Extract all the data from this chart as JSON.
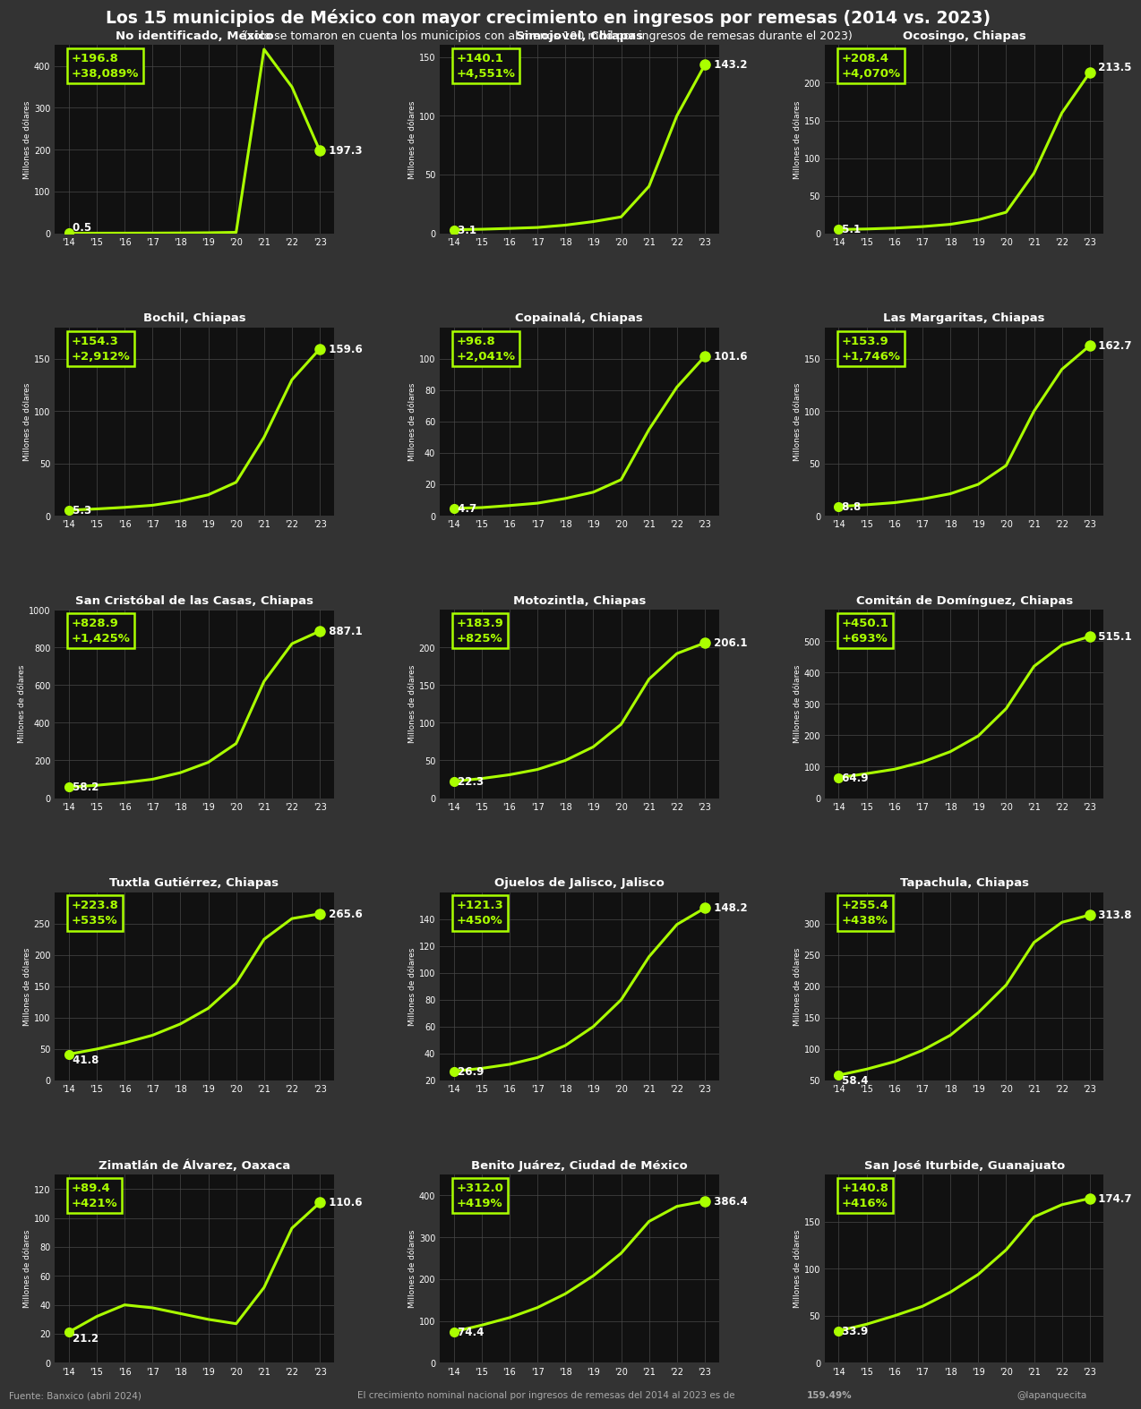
{
  "title": "Los 15 municipios de México con mayor crecimiento en ingresos por remesas (2014 vs. 2023)",
  "subtitle": "(solo se tomaron en cuenta los municipios con al menos 100 mdd por ingresos de remesas durante el 2023)",
  "footer_source": "Fuente: Banxico (abril 2024)",
  "footer_center": "El crecimiento nominal nacional por ingresos de remesas del 2014 al 2023 es de ",
  "footer_bold": "159.49%",
  "footer_handle": "@lapanquecita",
  "bg_color": "#333333",
  "plot_bg_color": "#111111",
  "line_color": "#aaff00",
  "dot_color": "#aaff00",
  "text_color": "#ffffff",
  "annotation_green": "#aaff00",
  "years": [
    "'14",
    "'15",
    "'16",
    "'17",
    "'18",
    "'19",
    "'20",
    "'21",
    "'22",
    "'23"
  ],
  "charts": [
    {
      "title": "No identificado, México",
      "start_val": "0.5",
      "end_val": "197.3",
      "change_abs": "+196.8",
      "change_pct": "+38,089%",
      "ylim": [
        0,
        450
      ],
      "yticks": [
        0,
        100,
        200,
        300,
        400
      ],
      "data": [
        0.5,
        0.5,
        0.6,
        0.7,
        1.0,
        1.5,
        2.5,
        440.0,
        350.0,
        197.3
      ],
      "start_ha": "right",
      "end_ha": "left",
      "start_va": "bottom",
      "end_va": "center"
    },
    {
      "title": "Simojovel, Chiapas",
      "start_val": "3.1",
      "end_val": "143.2",
      "change_abs": "+140.1",
      "change_pct": "+4,551%",
      "ylim": [
        0,
        160
      ],
      "yticks": [
        0,
        50,
        100,
        150
      ],
      "data": [
        3.1,
        3.5,
        4.2,
        5.0,
        7.0,
        10.0,
        14.0,
        40.0,
        100.0,
        143.2
      ],
      "start_ha": "right",
      "end_ha": "left",
      "start_va": "center",
      "end_va": "center"
    },
    {
      "title": "Ocosingo, Chiapas",
      "start_val": "5.1",
      "end_val": "213.5",
      "change_abs": "+208.4",
      "change_pct": "+4,070%",
      "ylim": [
        0,
        250
      ],
      "yticks": [
        0,
        50,
        100,
        150,
        200
      ],
      "data": [
        5.1,
        5.8,
        7.0,
        9.0,
        12.0,
        18.0,
        28.0,
        80.0,
        160.0,
        213.5
      ],
      "start_ha": "right",
      "end_ha": "left",
      "start_va": "center",
      "end_va": "bottom"
    },
    {
      "title": "Bochil, Chiapas",
      "start_val": "5.3",
      "end_val": "159.6",
      "change_abs": "+154.3",
      "change_pct": "+2,912%",
      "ylim": [
        0,
        180
      ],
      "yticks": [
        0,
        50,
        100,
        150
      ],
      "data": [
        5.3,
        6.5,
        8.0,
        10.0,
        14.0,
        20.0,
        32.0,
        75.0,
        130.0,
        159.6
      ],
      "start_ha": "right",
      "end_ha": "left",
      "start_va": "center",
      "end_va": "center"
    },
    {
      "title": "Copainalá, Chiapas",
      "start_val": "4.7",
      "end_val": "101.6",
      "change_abs": "+96.8",
      "change_pct": "+2,041%",
      "ylim": [
        0,
        120
      ],
      "yticks": [
        0,
        20,
        40,
        60,
        80,
        100
      ],
      "data": [
        4.7,
        5.2,
        6.5,
        8.0,
        11.0,
        15.0,
        23.0,
        55.0,
        82.0,
        101.6
      ],
      "start_ha": "right",
      "end_ha": "left",
      "start_va": "center",
      "end_va": "center"
    },
    {
      "title": "Las Margaritas, Chiapas",
      "start_val": "8.8",
      "end_val": "162.7",
      "change_abs": "+153.9",
      "change_pct": "+1,746%",
      "ylim": [
        0,
        180
      ],
      "yticks": [
        0,
        50,
        100,
        150
      ],
      "data": [
        8.8,
        10.5,
        12.5,
        16.0,
        21.0,
        30.0,
        48.0,
        100.0,
        140.0,
        162.7
      ],
      "start_ha": "right",
      "end_ha": "left",
      "start_va": "center",
      "end_va": "center"
    },
    {
      "title": "San Cristóbal de las Casas, Chiapas",
      "start_val": "58.2",
      "end_val": "887.1",
      "change_abs": "+828.9",
      "change_pct": "+1,425%",
      "ylim": [
        0,
        1000
      ],
      "yticks": [
        0,
        200,
        400,
        600,
        800,
        1000
      ],
      "data": [
        58.2,
        68.0,
        82.0,
        100.0,
        135.0,
        190.0,
        290.0,
        620.0,
        820.0,
        887.1
      ],
      "start_ha": "right",
      "end_ha": "left",
      "start_va": "center",
      "end_va": "center"
    },
    {
      "title": "Motozintla, Chiapas",
      "start_val": "22.3",
      "end_val": "206.1",
      "change_abs": "+183.9",
      "change_pct": "+825%",
      "ylim": [
        0,
        250
      ],
      "yticks": [
        0,
        50,
        100,
        150,
        200
      ],
      "data": [
        22.3,
        26.0,
        31.0,
        38.0,
        50.0,
        68.0,
        98.0,
        158.0,
        192.0,
        206.1
      ],
      "start_ha": "right",
      "end_ha": "left",
      "start_va": "center",
      "end_va": "center"
    },
    {
      "title": "Comitán de Domínguez, Chiapas",
      "start_val": "64.9",
      "end_val": "515.1",
      "change_abs": "+450.1",
      "change_pct": "+693%",
      "ylim": [
        0,
        600
      ],
      "yticks": [
        0,
        100,
        200,
        300,
        400,
        500
      ],
      "data": [
        64.9,
        78.0,
        92.0,
        115.0,
        148.0,
        198.0,
        285.0,
        420.0,
        488.0,
        515.1
      ],
      "start_ha": "right",
      "end_ha": "left",
      "start_va": "center",
      "end_va": "center"
    },
    {
      "title": "Tuxtla Gutiérrez, Chiapas",
      "start_val": "41.8",
      "end_val": "265.6",
      "change_abs": "+223.8",
      "change_pct": "+535%",
      "ylim": [
        0,
        300
      ],
      "yticks": [
        0,
        50,
        100,
        150,
        200,
        250
      ],
      "data": [
        41.8,
        50.0,
        60.0,
        72.0,
        90.0,
        115.0,
        155.0,
        225.0,
        258.0,
        265.6
      ],
      "start_ha": "right",
      "end_ha": "left",
      "start_va": "top",
      "end_va": "center"
    },
    {
      "title": "Ojuelos de Jalisco, Jalisco",
      "start_val": "26.9",
      "end_val": "148.2",
      "change_abs": "+121.3",
      "change_pct": "+450%",
      "ylim": [
        20,
        160
      ],
      "yticks": [
        20,
        40,
        60,
        80,
        100,
        120,
        140
      ],
      "data": [
        26.9,
        29.0,
        32.0,
        37.0,
        46.0,
        60.0,
        80.0,
        112.0,
        136.0,
        148.2
      ],
      "start_ha": "right",
      "end_ha": "left",
      "start_va": "center",
      "end_va": "center"
    },
    {
      "title": "Tapachula, Chiapas",
      "start_val": "58.4",
      "end_val": "313.8",
      "change_abs": "+255.4",
      "change_pct": "+438%",
      "ylim": [
        50,
        350
      ],
      "yticks": [
        50,
        100,
        150,
        200,
        250,
        300
      ],
      "data": [
        58.4,
        68.0,
        80.0,
        98.0,
        122.0,
        158.0,
        202.0,
        270.0,
        302.0,
        313.8
      ],
      "start_ha": "right",
      "end_ha": "left",
      "start_va": "top",
      "end_va": "center"
    },
    {
      "title": "Zimatlán de Álvarez, Oaxaca",
      "start_val": "21.2",
      "end_val": "110.6",
      "change_abs": "+89.4",
      "change_pct": "+421%",
      "ylim": [
        0,
        130
      ],
      "yticks": [
        0,
        20,
        40,
        60,
        80,
        100,
        120
      ],
      "data": [
        21.2,
        32.0,
        40.0,
        38.0,
        34.0,
        30.0,
        27.0,
        52.0,
        93.0,
        110.6
      ],
      "start_ha": "right",
      "end_ha": "left",
      "start_va": "top",
      "end_va": "center"
    },
    {
      "title": "Benito Juárez, Ciudad de México",
      "start_val": "74.4",
      "end_val": "386.4",
      "change_abs": "+312.0",
      "change_pct": "+419%",
      "ylim": [
        0,
        450
      ],
      "yticks": [
        0,
        100,
        200,
        300,
        400
      ],
      "data": [
        74.4,
        90.0,
        108.0,
        132.0,
        165.0,
        208.0,
        262.0,
        338.0,
        374.0,
        386.4
      ],
      "start_ha": "right",
      "end_ha": "left",
      "start_va": "center",
      "end_va": "center"
    },
    {
      "title": "San José Iturbide, Guanajuato",
      "start_val": "33.9",
      "end_val": "174.7",
      "change_abs": "+140.8",
      "change_pct": "+416%",
      "ylim": [
        0,
        200
      ],
      "yticks": [
        0,
        50,
        100,
        150
      ],
      "data": [
        33.9,
        41.0,
        50.0,
        60.0,
        75.0,
        94.0,
        120.0,
        155.0,
        168.0,
        174.7
      ],
      "start_ha": "right",
      "end_ha": "left",
      "start_va": "center",
      "end_va": "center"
    }
  ]
}
